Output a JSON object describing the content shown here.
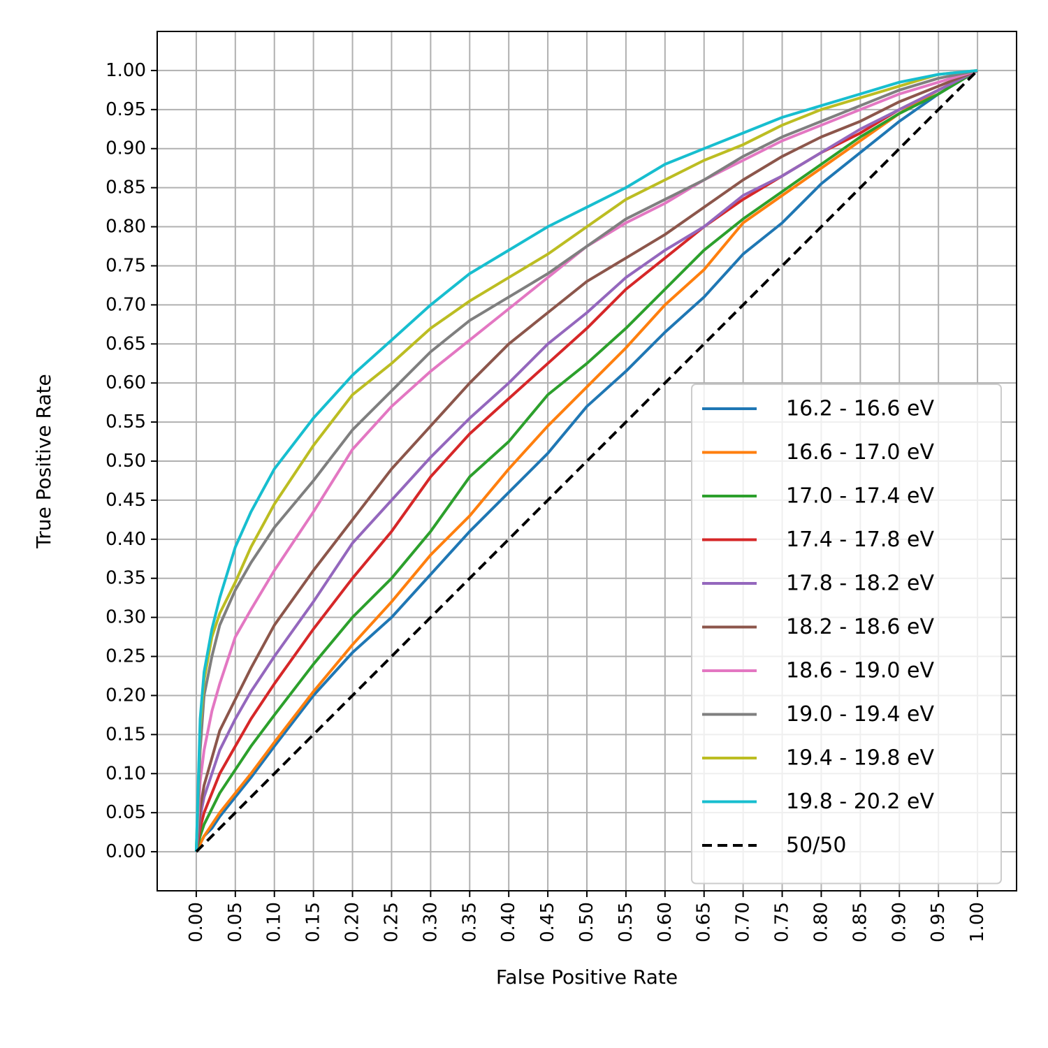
{
  "chart_data": {
    "type": "line",
    "title": "",
    "xlabel": "False Positive Rate",
    "ylabel": "True Positive Rate",
    "xlim": [
      -0.05,
      1.05
    ],
    "ylim": [
      -0.05,
      1.05
    ],
    "xticks": [
      "0.00",
      "0.05",
      "0.10",
      "0.15",
      "0.20",
      "0.25",
      "0.30",
      "0.35",
      "0.40",
      "0.45",
      "0.50",
      "0.55",
      "0.60",
      "0.65",
      "0.70",
      "0.75",
      "0.80",
      "0.85",
      "0.90",
      "0.95",
      "1.00"
    ],
    "yticks": [
      "0.00",
      "0.05",
      "0.10",
      "0.15",
      "0.20",
      "0.25",
      "0.30",
      "0.35",
      "0.40",
      "0.45",
      "0.50",
      "0.55",
      "0.60",
      "0.65",
      "0.70",
      "0.75",
      "0.80",
      "0.85",
      "0.90",
      "0.95",
      "1.00"
    ],
    "grid": true,
    "legend_position": "lower-right",
    "x": [
      0,
      0.005,
      0.01,
      0.02,
      0.03,
      0.05,
      0.07,
      0.1,
      0.15,
      0.2,
      0.25,
      0.3,
      0.35,
      0.4,
      0.45,
      0.5,
      0.55,
      0.6,
      0.65,
      0.7,
      0.75,
      0.8,
      0.85,
      0.9,
      0.95,
      1.0
    ],
    "series": [
      {
        "name": "16.2 - 16.6 eV",
        "color": "#1f77b4",
        "style": "solid",
        "y": [
          0,
          0.01,
          0.02,
          0.03,
          0.045,
          0.07,
          0.095,
          0.135,
          0.2,
          0.255,
          0.3,
          0.355,
          0.41,
          0.46,
          0.51,
          0.57,
          0.615,
          0.665,
          0.71,
          0.765,
          0.805,
          0.855,
          0.895,
          0.935,
          0.97,
          1.0
        ]
      },
      {
        "name": "16.6 - 17.0 eV",
        "color": "#ff7f0e",
        "style": "solid",
        "y": [
          0,
          0.01,
          0.02,
          0.035,
          0.05,
          0.075,
          0.1,
          0.14,
          0.205,
          0.265,
          0.32,
          0.38,
          0.43,
          0.49,
          0.545,
          0.595,
          0.645,
          0.7,
          0.745,
          0.805,
          0.84,
          0.875,
          0.91,
          0.945,
          0.975,
          1.0
        ]
      },
      {
        "name": "17.0 - 17.4 eV",
        "color": "#2ca02c",
        "style": "solid",
        "y": [
          0,
          0.02,
          0.035,
          0.055,
          0.075,
          0.105,
          0.135,
          0.175,
          0.24,
          0.3,
          0.35,
          0.41,
          0.48,
          0.525,
          0.585,
          0.625,
          0.67,
          0.72,
          0.77,
          0.81,
          0.845,
          0.88,
          0.915,
          0.945,
          0.97,
          1.0
        ]
      },
      {
        "name": "17.4 - 17.8 eV",
        "color": "#d62728",
        "style": "solid",
        "y": [
          0,
          0.03,
          0.05,
          0.075,
          0.1,
          0.135,
          0.17,
          0.215,
          0.285,
          0.35,
          0.41,
          0.48,
          0.535,
          0.58,
          0.625,
          0.67,
          0.72,
          0.76,
          0.8,
          0.835,
          0.865,
          0.895,
          0.92,
          0.95,
          0.975,
          1.0
        ]
      },
      {
        "name": "17.8 - 18.2 eV",
        "color": "#9467bd",
        "style": "solid",
        "y": [
          0,
          0.045,
          0.07,
          0.1,
          0.13,
          0.17,
          0.205,
          0.25,
          0.32,
          0.395,
          0.45,
          0.505,
          0.555,
          0.6,
          0.65,
          0.69,
          0.735,
          0.77,
          0.8,
          0.84,
          0.865,
          0.895,
          0.925,
          0.95,
          0.975,
          1.0
        ]
      },
      {
        "name": "18.2 - 18.6 eV",
        "color": "#8c564b",
        "style": "solid",
        "y": [
          0,
          0.055,
          0.085,
          0.12,
          0.155,
          0.195,
          0.235,
          0.29,
          0.36,
          0.425,
          0.49,
          0.545,
          0.6,
          0.65,
          0.69,
          0.73,
          0.76,
          0.79,
          0.825,
          0.86,
          0.89,
          0.915,
          0.935,
          0.96,
          0.98,
          1.0
        ]
      },
      {
        "name": "18.6 - 19.0 eV",
        "color": "#e377c2",
        "style": "solid",
        "y": [
          0,
          0.09,
          0.13,
          0.18,
          0.215,
          0.275,
          0.31,
          0.36,
          0.435,
          0.515,
          0.57,
          0.615,
          0.655,
          0.695,
          0.735,
          0.775,
          0.805,
          0.83,
          0.86,
          0.885,
          0.91,
          0.93,
          0.95,
          0.97,
          0.985,
          1.0
        ]
      },
      {
        "name": "19.0 - 19.4 eV",
        "color": "#7f7f7f",
        "style": "solid",
        "y": [
          0,
          0.13,
          0.2,
          0.25,
          0.29,
          0.335,
          0.37,
          0.415,
          0.475,
          0.54,
          0.59,
          0.64,
          0.68,
          0.71,
          0.74,
          0.775,
          0.81,
          0.835,
          0.86,
          0.89,
          0.915,
          0.935,
          0.955,
          0.975,
          0.99,
          1.0
        ]
      },
      {
        "name": "19.4 - 19.8 eV",
        "color": "#bcbd22",
        "style": "solid",
        "y": [
          0,
          0.16,
          0.22,
          0.275,
          0.305,
          0.345,
          0.39,
          0.445,
          0.52,
          0.585,
          0.625,
          0.67,
          0.705,
          0.735,
          0.765,
          0.8,
          0.835,
          0.86,
          0.885,
          0.905,
          0.93,
          0.95,
          0.965,
          0.98,
          0.995,
          1.0
        ]
      },
      {
        "name": "19.8 - 20.2 eV",
        "color": "#17becf",
        "style": "solid",
        "y": [
          0,
          0.17,
          0.23,
          0.285,
          0.325,
          0.39,
          0.435,
          0.49,
          0.555,
          0.61,
          0.655,
          0.7,
          0.74,
          0.77,
          0.8,
          0.825,
          0.85,
          0.88,
          0.9,
          0.92,
          0.94,
          0.955,
          0.97,
          0.985,
          0.995,
          1.0
        ]
      },
      {
        "name": "50/50",
        "color": "#000000",
        "style": "dashed",
        "y": [
          0,
          0.005,
          0.01,
          0.02,
          0.03,
          0.05,
          0.07,
          0.1,
          0.15,
          0.2,
          0.25,
          0.3,
          0.35,
          0.4,
          0.45,
          0.5,
          0.55,
          0.6,
          0.65,
          0.7,
          0.75,
          0.8,
          0.85,
          0.9,
          0.95,
          1.0
        ]
      }
    ]
  }
}
